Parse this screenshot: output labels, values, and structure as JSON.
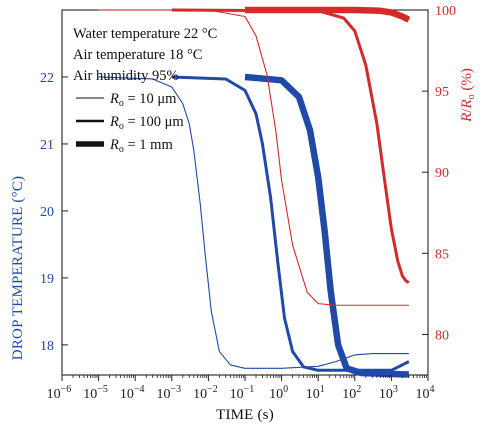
{
  "chart_data": {
    "type": "line",
    "annotations": [
      "Water temperature 22 °C",
      "Air temperature 18 °C",
      "Air humidity 95%"
    ],
    "legend": [
      {
        "symbol": "R",
        "subscript": "o",
        "text": " = 10 μm"
      },
      {
        "symbol": "R",
        "subscript": "o",
        "text": " = 100 μm"
      },
      {
        "symbol": "R",
        "subscript": "o",
        "text": " = 1 mm"
      }
    ],
    "x_axis": {
      "label": "TIME (s)",
      "scale": "log",
      "lim": [
        1e-06,
        10000
      ],
      "tick_labels": [
        "10",
        "10",
        "10",
        "10",
        "10",
        "10",
        "10",
        "10",
        "10",
        "10",
        "10"
      ],
      "tick_exponents": [
        "−6",
        "−5",
        "−4",
        "−3",
        "−2",
        "−1",
        "0",
        "1",
        "2",
        "3",
        "4"
      ]
    },
    "y_left": {
      "label": "DROP TEMPERATURE (°C)",
      "lim": [
        17.55,
        23.0
      ],
      "ticks": [
        "18",
        "19",
        "20",
        "21",
        "22"
      ],
      "color": "#1f4aa8"
    },
    "y_right": {
      "label_symbol": "R",
      "label_mid": "/",
      "label_symbol2": "R",
      "label_sub": "o",
      "label_unit": " (%)",
      "lim": [
        77.5,
        100
      ],
      "ticks": [
        "80",
        "85",
        "90",
        "95",
        "100"
      ],
      "color": "#d42a2a"
    },
    "series": [
      {
        "axis": "left",
        "color": "#1f4aa8",
        "weight": "thin",
        "x": [
          1e-05,
          0.0003,
          0.001,
          0.002,
          0.003,
          0.004,
          0.006,
          0.008,
          0.012,
          0.02,
          0.04,
          0.1,
          1,
          10,
          30,
          100,
          300,
          1000,
          3000
        ],
        "y": [
          22.0,
          21.97,
          21.85,
          21.6,
          21.3,
          20.9,
          20.1,
          19.4,
          18.5,
          17.9,
          17.7,
          17.65,
          17.65,
          17.68,
          17.75,
          17.85,
          17.87,
          17.87,
          17.87
        ]
      },
      {
        "axis": "left",
        "color": "#1f4aa8",
        "weight": "medium",
        "x": [
          0.001,
          0.03,
          0.1,
          0.2,
          0.3,
          0.5,
          0.8,
          1.2,
          2,
          4,
          10,
          100,
          1000,
          3000
        ],
        "y": [
          22.0,
          21.97,
          21.8,
          21.45,
          21.0,
          20.2,
          19.2,
          18.4,
          17.9,
          17.67,
          17.62,
          17.62,
          17.62,
          17.75
        ]
      },
      {
        "axis": "left",
        "color": "#1f4aa8",
        "weight": "thick",
        "x": [
          0.1,
          1,
          3,
          6,
          10,
          15,
          22,
          35,
          60,
          150,
          500,
          2000,
          3000
        ],
        "y": [
          22.0,
          21.95,
          21.7,
          21.2,
          20.5,
          19.7,
          18.8,
          18.0,
          17.65,
          17.58,
          17.57,
          17.56,
          17.56
        ]
      },
      {
        "axis": "right",
        "color": "#d42a2a",
        "weight": "thin",
        "x": [
          1e-05,
          0.01,
          0.1,
          0.2,
          0.4,
          0.7,
          1,
          2,
          5,
          10,
          30,
          100,
          1000,
          3000
        ],
        "y": [
          100,
          100,
          99.6,
          98.4,
          96.0,
          92.5,
          89.5,
          85.5,
          82.6,
          81.9,
          81.8,
          81.8,
          81.8,
          81.8
        ]
      },
      {
        "axis": "right",
        "color": "#d42a2a",
        "weight": "medium",
        "x": [
          0.001,
          10,
          50,
          100,
          200,
          400,
          700,
          1000,
          1500,
          2000,
          2500,
          3000
        ],
        "y": [
          100,
          99.95,
          99.5,
          98.7,
          96.6,
          93.0,
          89.0,
          86.5,
          84.5,
          83.6,
          83.3,
          83.2
        ]
      },
      {
        "axis": "right",
        "color": "#d42a2a",
        "weight": "thick",
        "x": [
          0.1,
          100,
          500,
          1000,
          2000,
          3000
        ],
        "y": [
          100,
          100,
          99.95,
          99.85,
          99.6,
          99.4
        ]
      }
    ]
  }
}
